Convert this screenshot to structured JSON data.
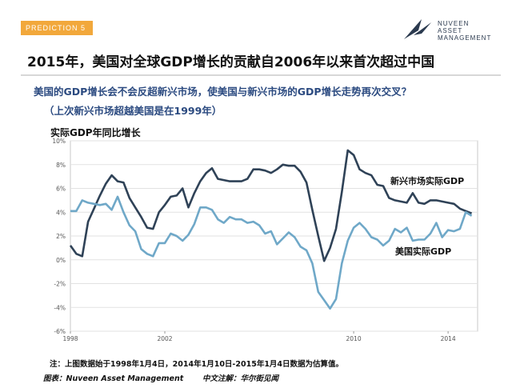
{
  "header": {
    "tag": "PREDICTION 5",
    "logo_line1": "NUVEEN",
    "logo_line2": "ASSET",
    "logo_line3": "MANAGEMENT"
  },
  "title": "2015年，美国对全球GDP增长的贡献自2006年以来首次超过中国",
  "subtitle1": "美国的GDP增长会不会反超新兴市场，使美国与新兴市场的GDP增长走势再次交叉？",
  "subtitle2": "（上次新兴市场超越美国是在1999年）",
  "footer": {
    "note": "注：上图数据始于1998年1月4日，2014年1月10日-2015年1月4日数据为估算值。",
    "source": "图表：Nuveen Asset Management",
    "translator": "中文注解：华尔街见闻"
  },
  "colors": {
    "em": "#2f4257",
    "us": "#6fa8c8",
    "tag_bg": "#f2a83b",
    "subtitle": "#2b4a80"
  },
  "chart_data": {
    "type": "line",
    "title": "实际GDP年同比增长",
    "xlabel": "",
    "ylabel": "实际GDP年同比增长",
    "xlim": [
      1998,
      2015.25
    ],
    "ylim": [
      -6,
      10
    ],
    "yticks": [
      "10%",
      "8%",
      "6%",
      "4%",
      "2%",
      "0%",
      "-2%",
      "-4%",
      "-6%"
    ],
    "ytick_values": [
      10,
      8,
      6,
      4,
      2,
      0,
      -2,
      -4,
      -6
    ],
    "xticks": [
      "1998",
      "2002",
      "2010",
      "2014"
    ],
    "xtick_values": [
      1998,
      2002,
      2010,
      2014
    ],
    "series": [
      {
        "name": "新兴市场实际GDP",
        "x": [
          1998,
          1998.25,
          1998.5,
          1998.75,
          1999,
          1999.25,
          1999.5,
          1999.75,
          2000,
          2000.25,
          2000.5,
          2000.75,
          2001,
          2001.25,
          2001.5,
          2001.75,
          2002,
          2002.25,
          2002.5,
          2002.75,
          2003,
          2003.25,
          2003.5,
          2003.75,
          2004,
          2004.25,
          2004.5,
          2004.75,
          2005,
          2005.25,
          2005.5,
          2005.75,
          2006,
          2006.25,
          2006.5,
          2006.75,
          2007,
          2007.25,
          2007.5,
          2007.75,
          2008,
          2008.25,
          2008.5,
          2008.75,
          2009,
          2009.25,
          2009.5,
          2009.75,
          2010,
          2010.25,
          2010.5,
          2010.75,
          2011,
          2011.25,
          2011.5,
          2011.75,
          2012,
          2012.25,
          2012.5,
          2012.75,
          2013,
          2013.25,
          2013.5,
          2013.75,
          2014,
          2014.25,
          2014.5,
          2014.75,
          2015
        ],
        "values": [
          1.2,
          0.5,
          0.3,
          3.2,
          4.3,
          5.4,
          6.4,
          7.1,
          6.6,
          6.5,
          5.2,
          4.4,
          3.6,
          2.7,
          2.6,
          4.0,
          4.6,
          5.3,
          5.4,
          6.0,
          4.4,
          5.6,
          6.6,
          7.3,
          7.7,
          6.8,
          6.7,
          6.6,
          6.6,
          6.6,
          6.8,
          7.6,
          7.6,
          7.5,
          7.3,
          7.6,
          8.0,
          7.9,
          7.9,
          7.4,
          6.5,
          4.2,
          2.0,
          -0.1,
          1.0,
          2.6,
          5.7,
          9.2,
          8.8,
          7.6,
          7.3,
          7.1,
          6.3,
          6.2,
          5.2,
          5.0,
          4.9,
          4.8,
          5.6,
          4.8,
          4.7,
          5.0,
          5.0,
          4.9,
          4.8,
          4.7,
          4.3,
          4.1,
          3.9
        ]
      },
      {
        "name": "美国实际GDP",
        "x": [
          1998,
          1998.25,
          1998.5,
          1998.75,
          1999,
          1999.25,
          1999.5,
          1999.75,
          2000,
          2000.25,
          2000.5,
          2000.75,
          2001,
          2001.25,
          2001.5,
          2001.75,
          2002,
          2002.25,
          2002.5,
          2002.75,
          2003,
          2003.25,
          2003.5,
          2003.75,
          2004,
          2004.25,
          2004.5,
          2004.75,
          2005,
          2005.25,
          2005.5,
          2005.75,
          2006,
          2006.25,
          2006.5,
          2006.75,
          2007,
          2007.25,
          2007.5,
          2007.75,
          2008,
          2008.25,
          2008.5,
          2008.75,
          2009,
          2009.25,
          2009.5,
          2009.75,
          2010,
          2010.25,
          2010.5,
          2010.75,
          2011,
          2011.25,
          2011.5,
          2011.75,
          2012,
          2012.25,
          2012.5,
          2012.75,
          2013,
          2013.25,
          2013.5,
          2013.75,
          2014,
          2014.25,
          2014.5,
          2014.75,
          2015
        ],
        "values": [
          4.1,
          4.1,
          5.0,
          4.8,
          4.7,
          4.6,
          4.7,
          4.2,
          5.3,
          4.0,
          2.9,
          2.4,
          0.9,
          0.5,
          0.3,
          1.4,
          1.4,
          2.2,
          2.0,
          1.6,
          2.1,
          3.0,
          4.4,
          4.4,
          4.2,
          3.4,
          3.1,
          3.6,
          3.4,
          3.4,
          3.1,
          3.2,
          2.9,
          2.2,
          2.4,
          1.3,
          1.8,
          2.3,
          1.9,
          1.1,
          0.8,
          -0.3,
          -2.7,
          -3.4,
          -4.1,
          -3.3,
          -0.3,
          1.6,
          2.7,
          3.1,
          2.6,
          1.9,
          1.7,
          1.2,
          1.6,
          2.6,
          2.3,
          2.7,
          1.6,
          1.7,
          1.7,
          2.2,
          3.1,
          1.9,
          2.5,
          2.4,
          2.6,
          4.0,
          3.7
        ]
      }
    ],
    "annotations": [
      "新兴市场实际GDP",
      "美国实际GDP"
    ]
  }
}
